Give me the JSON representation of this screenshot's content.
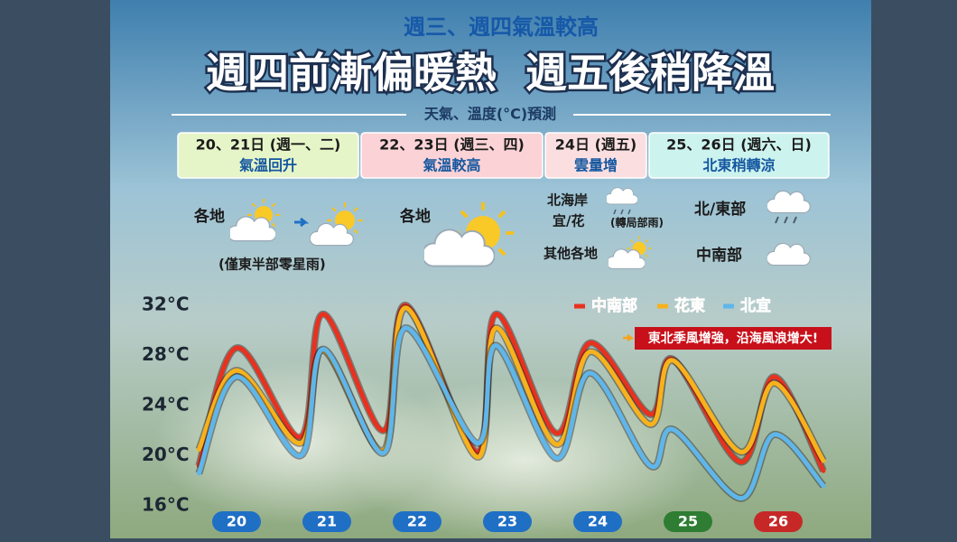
{
  "header": {
    "subtitle": "週三、週四氣溫較高",
    "title": "週四前漸偏暖熱  週五後稍降溫",
    "section": "天氣、溫度(°C)預測"
  },
  "panels": [
    {
      "date": "20、21日 (週一、二)",
      "summary": "氣溫回升",
      "color": "#e6f5c8"
    },
    {
      "date": "22、23日 (週三、四)",
      "summary": "氣溫較高",
      "color": "#fbd3d6"
    },
    {
      "date": "24日 (週五)",
      "summary": "雲量增",
      "color": "#fbdfe0"
    },
    {
      "date": "25、26日 (週六、日)",
      "summary": "北東稍轉涼",
      "color": "#cdf3ee"
    }
  ],
  "weather": {
    "d1_place": "各地",
    "d1_note": "(僅東半部零星雨)",
    "d2_place": "各地",
    "d3_north": "北海岸",
    "d3_yihua": "宜/花",
    "d3_note": "(轉局部雨)",
    "d3_other": "其他各地",
    "d4_north": "北/東部",
    "d4_south": "中南部"
  },
  "chart_data": {
    "type": "line",
    "annotation": "東北季風增強，沿海風浪增大!",
    "x": [
      2,
      12,
      29,
      35,
      51,
      57,
      76,
      81,
      97,
      106,
      122,
      128,
      146,
      155,
      168
    ],
    "xlim": [
      0,
      168
    ],
    "categories": [
      "20",
      "21",
      "22",
      "23",
      "24",
      "25",
      "26"
    ],
    "category_colors": [
      "#1f6fc5",
      "#1f6fc5",
      "#1f6fc5",
      "#1f6fc5",
      "#1f6fc5",
      "#2e7d32",
      "#c62828"
    ],
    "ylim": [
      16,
      32
    ],
    "yticks": [
      {
        "value": 32,
        "label": "32°C"
      },
      {
        "value": 28,
        "label": "28°C"
      },
      {
        "value": 24,
        "label": "24°C"
      },
      {
        "value": 20,
        "label": "20°C"
      },
      {
        "value": 16,
        "label": "16°C"
      }
    ],
    "grid": false,
    "legend": "top-right",
    "series": [
      {
        "name": "中南部",
        "color": "#e8311f",
        "values": [
          19.2,
          28.6,
          21.5,
          31.3,
          22.0,
          32.0,
          20.3,
          31.3,
          21.8,
          29.0,
          23.3,
          27.7,
          19.5,
          26.3,
          18.8
        ]
      },
      {
        "name": "花東",
        "color": "#f7b21c",
        "values": [
          20.5,
          26.8,
          21.0,
          28.4,
          20.4,
          31.8,
          19.9,
          30.2,
          20.9,
          28.3,
          22.5,
          27.6,
          20.3,
          25.8,
          19.6
        ]
      },
      {
        "name": "北宜",
        "color": "#5fb6ea",
        "values": [
          18.6,
          26.3,
          20.0,
          28.5,
          20.2,
          30.2,
          21.0,
          28.8,
          19.8,
          26.6,
          19.2,
          22.1,
          16.6,
          21.7,
          17.6
        ]
      }
    ]
  }
}
